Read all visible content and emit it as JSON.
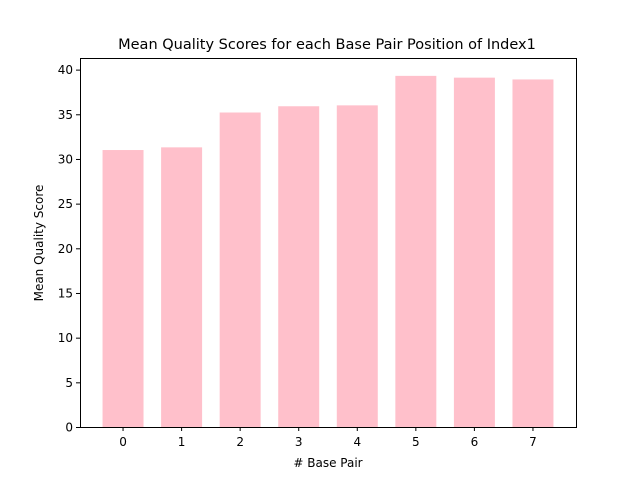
{
  "chart_data": {
    "type": "bar",
    "title": "Mean Quality Scores for each Base Pair Position of Index1",
    "xlabel": "# Base Pair",
    "ylabel": "Mean Quality Score",
    "categories": [
      "0",
      "1",
      "2",
      "3",
      "4",
      "5",
      "6",
      "7"
    ],
    "values": [
      31.0,
      31.3,
      35.2,
      35.9,
      36.0,
      39.3,
      39.1,
      38.9
    ],
    "ylim": [
      0,
      41.3
    ],
    "yticks": [
      0,
      5,
      10,
      15,
      20,
      25,
      30,
      35,
      40
    ],
    "bar_color": "#ffc0cb",
    "grid": false,
    "legend": false
  }
}
